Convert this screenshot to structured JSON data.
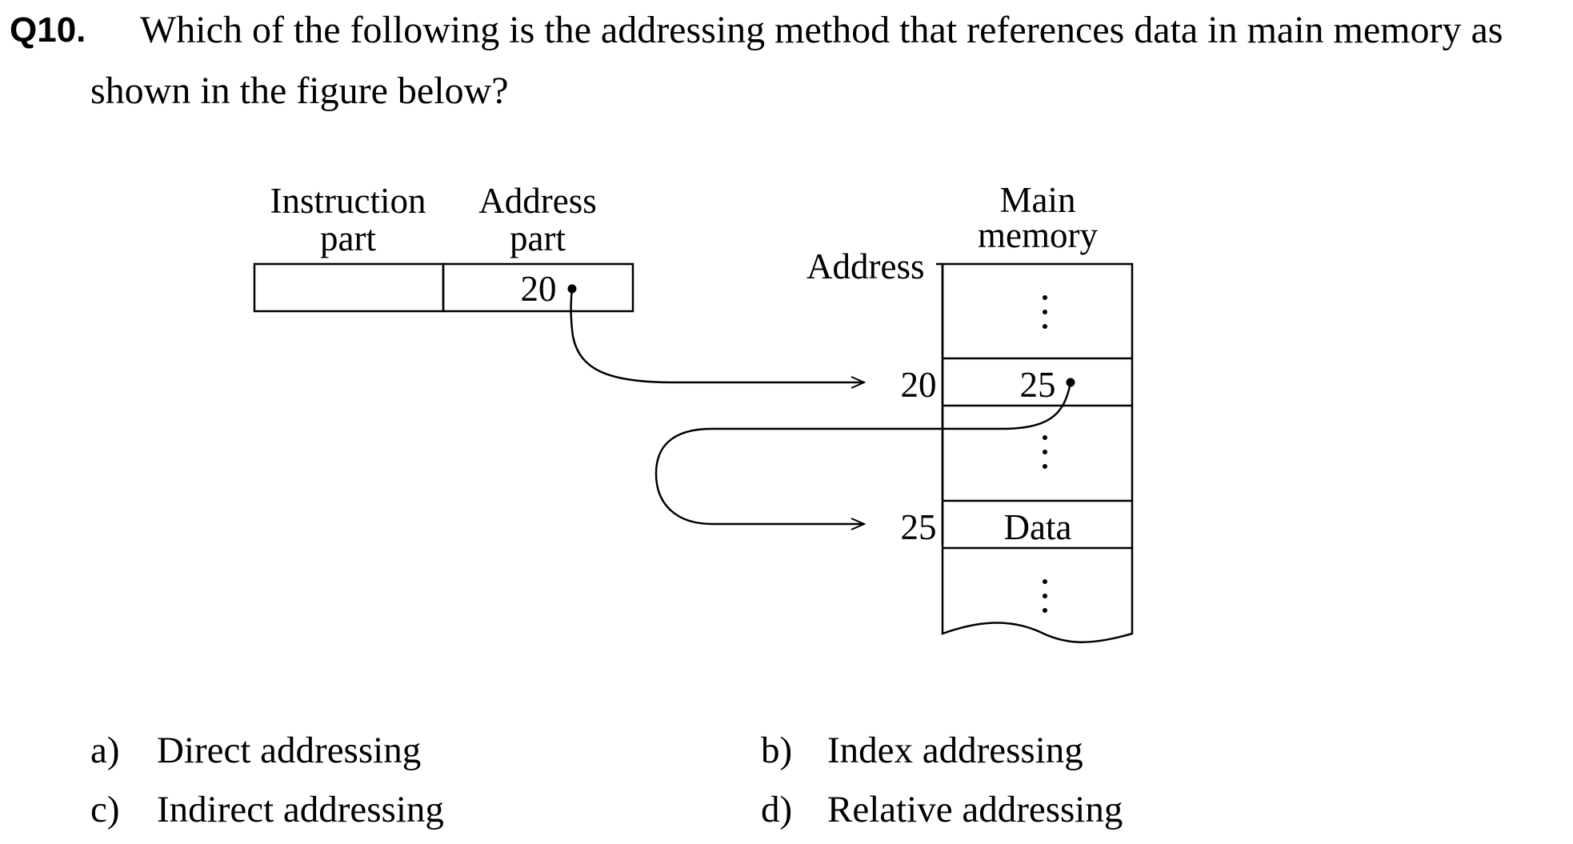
{
  "question": {
    "number": "Q10.",
    "text_line1": "Which of the following is the addressing method that references data in main memory as",
    "text_line2": "shown in the figure below?"
  },
  "figure": {
    "instruction_header_line1": "Instruction",
    "instruction_header_line2": "part",
    "address_header_line1": "Address",
    "address_header_line2": "part",
    "address_part_value": "20",
    "address_label": "Address",
    "memory_header_line1": "Main",
    "memory_header_line2": "memory",
    "address_20": "20",
    "address_25": "25",
    "cell_at_20": "25",
    "cell_at_25": "Data",
    "ellipsis": "⋮"
  },
  "options": [
    {
      "letter": "a)",
      "text": "Direct addressing"
    },
    {
      "letter": "b)",
      "text": "Index addressing"
    },
    {
      "letter": "c)",
      "text": "Indirect addressing"
    },
    {
      "letter": "d)",
      "text": "Relative addressing"
    }
  ]
}
